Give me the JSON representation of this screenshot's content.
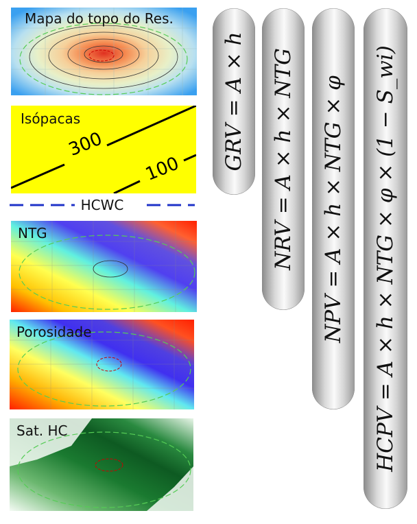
{
  "panels": {
    "top_map": {
      "label": "Mapa do topo do Res."
    },
    "isopachs": {
      "label": "Isópacas",
      "contour_high": "300",
      "contour_low": "100"
    },
    "hcwc": {
      "label": "HCWC"
    },
    "ntg": {
      "label": "NTG"
    },
    "porosity": {
      "label": "Porosidade"
    },
    "sat_hc": {
      "label": "Sat. HC"
    }
  },
  "formulas": {
    "grv": "GRV = A × h",
    "nrv": "NRV = A × h × NTG",
    "npv": "NPV = A × h × NTG × φ",
    "hcpv": "HCPV = A × h × NTG × φ × (1 − S_wi)"
  },
  "colors": {
    "isopach_bg": "#ffff00",
    "hcwc_line": "#1f33c8",
    "pill_light": "#fafafa",
    "pill_dark": "#8a8a8a"
  }
}
